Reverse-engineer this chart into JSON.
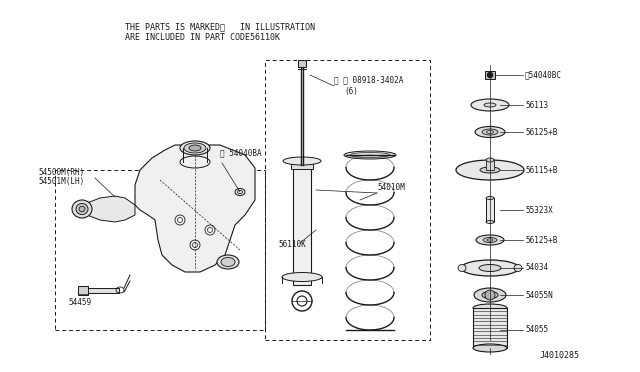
{
  "bg_color": "#ffffff",
  "line_color": "#1a1a1a",
  "fig_width": 6.4,
  "fig_height": 3.72,
  "dpi": 100,
  "header_line1": "THE PARTS IS MARKED※   IN ILLUSTRATION",
  "header_line2": "ARE INCLUDED IN PART CODE56110K",
  "diagram_id": "J4010285",
  "label_fs": 5.5,
  "note_label": "※ Ⓝ 08918-3402A",
  "note_sub": "(6)"
}
